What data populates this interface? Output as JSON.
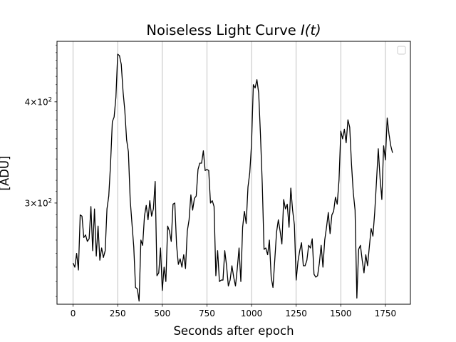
{
  "chart_data": {
    "type": "line",
    "title_main": "Noiseless Light Curve ",
    "title_math": "I(t)",
    "xlabel": "Seconds after epoch",
    "ylabel": "[ADU]",
    "yscale": "log",
    "xlim": [
      -90,
      1890
    ],
    "ylim": [
      225,
      475
    ],
    "x_ticks": [
      {
        "value": 0,
        "label": "0"
      },
      {
        "value": 250,
        "label": "250"
      },
      {
        "value": 500,
        "label": "500"
      },
      {
        "value": 750,
        "label": "750"
      },
      {
        "value": 1000,
        "label": "1000"
      },
      {
        "value": 1250,
        "label": "1250"
      },
      {
        "value": 1500,
        "label": "1500"
      },
      {
        "value": 1750,
        "label": "1750"
      }
    ],
    "y_ticks": [
      {
        "value": 300,
        "base": "3",
        "exp": "2"
      },
      {
        "value": 400,
        "base": "4",
        "exp": "2"
      }
    ],
    "grid": "x",
    "legend": {
      "location": "top-right",
      "entries": []
    },
    "series": [
      {
        "name": "I(t)",
        "color": "#000000",
        "x": [
          0,
          10,
          20,
          30,
          40,
          50,
          60,
          70,
          80,
          90,
          100,
          110,
          120,
          130,
          140,
          150,
          160,
          170,
          180,
          190,
          200,
          210,
          220,
          230,
          240,
          250,
          260,
          270,
          280,
          290,
          300,
          310,
          320,
          330,
          340,
          350,
          360,
          370,
          380,
          390,
          400,
          410,
          420,
          430,
          440,
          450,
          460,
          470,
          480,
          490,
          500,
          510,
          520,
          530,
          540,
          550,
          560,
          570,
          580,
          590,
          600,
          610,
          620,
          630,
          640,
          650,
          660,
          670,
          680,
          690,
          700,
          710,
          720,
          730,
          740,
          750,
          760,
          770,
          780,
          790,
          800,
          810,
          820,
          830,
          840,
          850,
          860,
          870,
          880,
          890,
          900,
          910,
          920,
          930,
          940,
          950,
          960,
          970,
          980,
          990,
          1000,
          1010,
          1020,
          1030,
          1040,
          1050,
          1060,
          1070,
          1080,
          1090,
          1100,
          1110,
          1120,
          1130,
          1140,
          1150,
          1160,
          1170,
          1180,
          1190,
          1200,
          1210,
          1220,
          1230,
          1240,
          1250,
          1260,
          1270,
          1280,
          1290,
          1300,
          1310,
          1320,
          1330,
          1340,
          1350,
          1360,
          1370,
          1380,
          1390,
          1400,
          1410,
          1420,
          1430,
          1440,
          1450,
          1460,
          1470,
          1480,
          1490,
          1500,
          1510,
          1520,
          1530,
          1540,
          1550,
          1560,
          1570,
          1580,
          1590,
          1600,
          1610,
          1620,
          1630,
          1640,
          1650,
          1660,
          1670,
          1680,
          1690,
          1700,
          1710,
          1720,
          1730,
          1740,
          1750,
          1760,
          1770,
          1780,
          1790
        ],
        "values": [
          253,
          250,
          260,
          248,
          290,
          289,
          272,
          274,
          269,
          271,
          297,
          262,
          295,
          258,
          281,
          255,
          264,
          257,
          262,
          295,
          306,
          335,
          378,
          383,
          405,
          458,
          456,
          445,
          412,
          390,
          359,
          347,
          303,
          283,
          265,
          236,
          235,
          227,
          270,
          266,
          289,
          298,
          286,
          302,
          289,
          295,
          319,
          244,
          246,
          264,
          234,
          250,
          240,
          281,
          277,
          269,
          299,
          300,
          266,
          252,
          256,
          250,
          259,
          249,
          277,
          286,
          307,
          294,
          304,
          306,
          330,
          336,
          336,
          348,
          329,
          330,
          329,
          300,
          302,
          297,
          244,
          262,
          240,
          241,
          241,
          262,
          251,
          237,
          241,
          251,
          243,
          237,
          249,
          264,
          240,
          280,
          293,
          283,
          314,
          327,
          355,
          420,
          416,
          426,
          410,
          364,
          317,
          263,
          264,
          259,
          270,
          243,
          236,
          255,
          276,
          286,
          277,
          267,
          303,
          295,
          299,
          280,
          313,
          294,
          282,
          241,
          254,
          262,
          268,
          251,
          251,
          255,
          266,
          264,
          271,
          245,
          243,
          244,
          253,
          266,
          250,
          270,
          280,
          292,
          275,
          290,
          293,
          305,
          299,
          320,
          368,
          360,
          370,
          356,
          380,
          372,
          335,
          309,
          294,
          229,
          263,
          266,
          255,
          246,
          259,
          251,
          265,
          279,
          273,
          292,
          319,
          350,
          322,
          303,
          353,
          339,
          382,
          365,
          353,
          346
        ]
      }
    ]
  }
}
